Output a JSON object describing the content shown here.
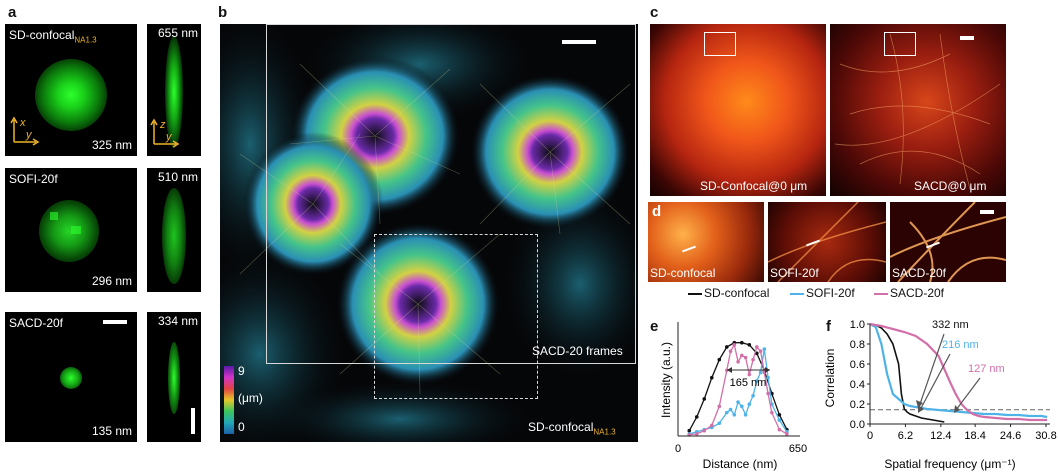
{
  "panel_letters": {
    "a": "a",
    "b": "b",
    "c": "c",
    "d": "d",
    "e": "e",
    "f": "f"
  },
  "panel_a": {
    "rows": [
      {
        "name": "SD-confocal",
        "sub": "NA1.3",
        "xy_size": "325 nm",
        "xz_size": "655 nm"
      },
      {
        "name": "SOFI-20f",
        "sub": "",
        "xy_size": "296 nm",
        "xz_size": "510 nm"
      },
      {
        "name": "SACD-20f",
        "sub": "",
        "xy_size": "135 nm",
        "xz_size": "334 nm"
      }
    ],
    "axes_xy": {
      "a": "x",
      "b": "y"
    },
    "axes_xz": {
      "a": "z",
      "b": "y"
    }
  },
  "panel_b": {
    "colorbar": {
      "max": "9",
      "unit": "(μm)",
      "min": "0"
    },
    "inner_label": "SACD-20 frames",
    "outer_label": "SD-confocal",
    "outer_sub": "NA1.3"
  },
  "panel_c": {
    "left_label": "SD-Confocal@0 μm",
    "right_label": "SACD@0 μm"
  },
  "panel_d": {
    "labels": [
      "SD-confocal",
      "SOFI-20f",
      "SACD-20f"
    ]
  },
  "legend": [
    {
      "name": "SD-confocal",
      "color": "#111111"
    },
    {
      "name": "SOFI-20f",
      "color": "#4fb3e8"
    },
    {
      "name": "SACD-20f",
      "color": "#d36fa8"
    }
  ],
  "chart_data": [
    {
      "type": "line",
      "panel": "e",
      "xlabel": "Distance (nm)",
      "ylabel": "Intensity (a.u.)",
      "xlim": [
        0,
        650
      ],
      "ylim": [
        0,
        1
      ],
      "xticks": [
        "0",
        "650"
      ],
      "annotation": "165 nm",
      "series": [
        {
          "name": "SD-confocal",
          "color": "#111111",
          "x": [
            60,
            100,
            140,
            180,
            220,
            260,
            300,
            340,
            380,
            420,
            460,
            500,
            540,
            580
          ],
          "y": [
            0.05,
            0.18,
            0.35,
            0.55,
            0.72,
            0.84,
            0.88,
            0.88,
            0.86,
            0.78,
            0.62,
            0.4,
            0.2,
            0.06
          ]
        },
        {
          "name": "SOFI-20f",
          "color": "#4fb3e8",
          "x": [
            60,
            100,
            140,
            180,
            220,
            260,
            280,
            300,
            320,
            340,
            360,
            380,
            400,
            420,
            440,
            460,
            480,
            500,
            540,
            580
          ],
          "y": [
            0.02,
            0.04,
            0.06,
            0.08,
            0.12,
            0.22,
            0.25,
            0.2,
            0.32,
            0.28,
            0.2,
            0.3,
            0.38,
            0.52,
            0.6,
            0.82,
            0.55,
            0.3,
            0.15,
            0.04
          ]
        },
        {
          "name": "SACD-20f",
          "color": "#d36fa8",
          "x": [
            60,
            100,
            140,
            180,
            220,
            260,
            280,
            300,
            320,
            340,
            360,
            380,
            400,
            420,
            440,
            460,
            480,
            500,
            540,
            580
          ],
          "y": [
            0.01,
            0.02,
            0.05,
            0.1,
            0.28,
            0.62,
            0.8,
            0.86,
            0.7,
            0.76,
            0.74,
            0.58,
            0.72,
            0.84,
            0.8,
            0.6,
            0.4,
            0.22,
            0.06,
            0.02
          ]
        }
      ]
    },
    {
      "type": "line",
      "panel": "f",
      "xlabel": "Spatial frequency (μm⁻¹)",
      "ylabel": "Correlation",
      "xlim": [
        0,
        31.5
      ],
      "ylim": [
        0,
        1.0
      ],
      "xticks": [
        0,
        6.2,
        12.4,
        18.4,
        24.6,
        30.8
      ],
      "yticks": [
        0,
        0.2,
        0.4,
        0.6,
        0.8,
        1.0
      ],
      "threshold": 0.143,
      "annotations": [
        {
          "text": "332 nm",
          "color": "#111111"
        },
        {
          "text": "216 nm",
          "color": "#4fb3e8"
        },
        {
          "text": "127 nm",
          "color": "#d36fa8"
        }
      ],
      "series": [
        {
          "name": "SD-confocal",
          "color": "#111111",
          "x": [
            0,
            1,
            2,
            3,
            4,
            5,
            5.5,
            6,
            6.5,
            7,
            8,
            9,
            10,
            11,
            12,
            13
          ],
          "y": [
            1.0,
            0.99,
            0.96,
            0.9,
            0.8,
            0.6,
            0.3,
            0.15,
            0.12,
            0.1,
            0.08,
            0.06,
            0.05,
            0.04,
            0.03,
            0.02
          ]
        },
        {
          "name": "SOFI-20f",
          "color": "#4fb3e8",
          "x": [
            0,
            1,
            2,
            3,
            4,
            5,
            6,
            7,
            8,
            9,
            10,
            12,
            14,
            16,
            18,
            20,
            22,
            24,
            26,
            28,
            30,
            31
          ],
          "y": [
            1.0,
            0.97,
            0.8,
            0.5,
            0.3,
            0.25,
            0.2,
            0.18,
            0.17,
            0.16,
            0.15,
            0.14,
            0.13,
            0.12,
            0.11,
            0.1,
            0.1,
            0.09,
            0.09,
            0.08,
            0.08,
            0.07
          ]
        },
        {
          "name": "SACD-20f",
          "color": "#d36fa8",
          "x": [
            0,
            2,
            4,
            6,
            8,
            10,
            12,
            13,
            14,
            15,
            16,
            17,
            18,
            19,
            20,
            22,
            24,
            26,
            28,
            30,
            31
          ],
          "y": [
            1.0,
            0.98,
            0.95,
            0.92,
            0.88,
            0.8,
            0.68,
            0.55,
            0.42,
            0.3,
            0.2,
            0.14,
            0.1,
            0.08,
            0.07,
            0.06,
            0.05,
            0.05,
            0.04,
            0.04,
            0.04
          ]
        }
      ]
    }
  ]
}
